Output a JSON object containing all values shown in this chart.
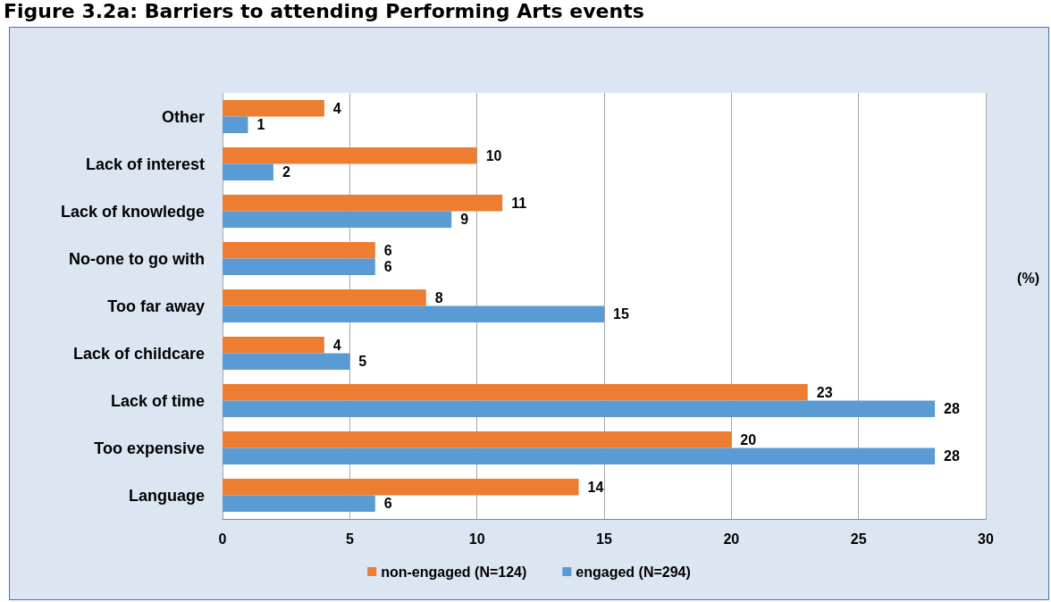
{
  "chart_data": {
    "type": "bar",
    "orientation": "horizontal",
    "title": "Figure 3.2a: Barriers to attending Performing Arts events",
    "xlabel": "(%)",
    "categories": [
      "Other",
      "Lack of interest",
      "Lack of knowledge",
      "No-one to go with",
      "Too far away",
      "Lack of childcare",
      "Lack of time",
      "Too expensive",
      "Language"
    ],
    "series": [
      {
        "name": "non-engaged (N=124)",
        "color": "#ed7d31",
        "values": [
          4,
          10,
          11,
          6,
          8,
          4,
          23,
          20,
          14
        ]
      },
      {
        "name": "engaged (N=294)",
        "color": "#5b9bd5",
        "values": [
          1,
          2,
          9,
          6,
          15,
          5,
          28,
          28,
          6
        ]
      }
    ],
    "xlim": [
      0,
      30
    ],
    "xticks": [
      0,
      5,
      10,
      15,
      20,
      25,
      30
    ],
    "grid": "x",
    "legend": "bottom",
    "data_labels": true
  }
}
